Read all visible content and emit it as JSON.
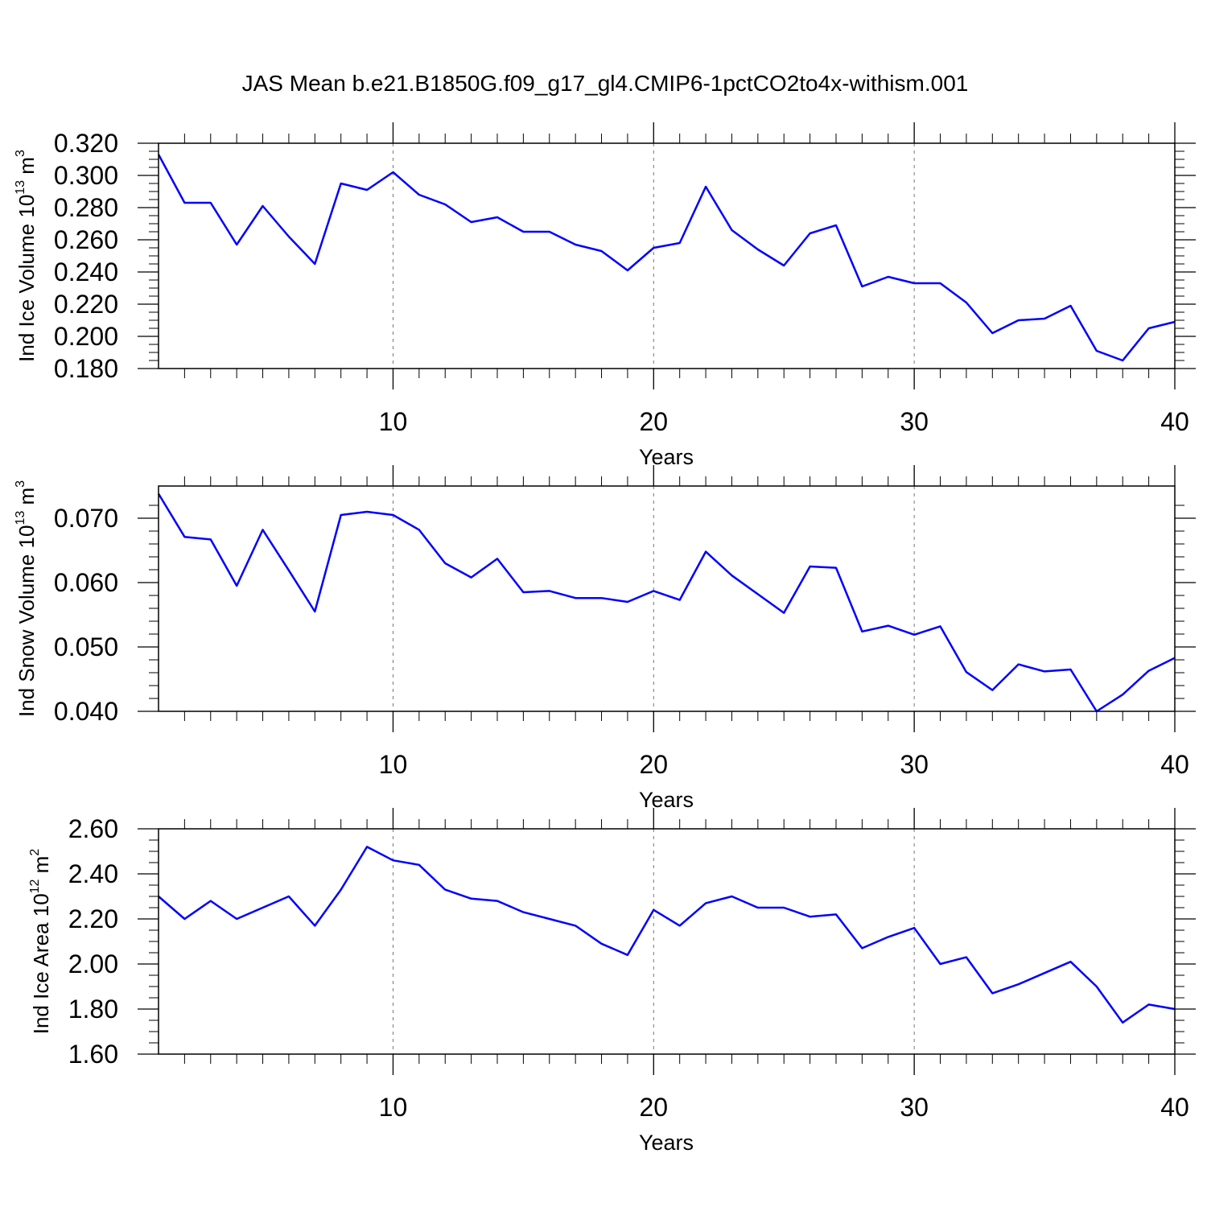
{
  "figure": {
    "title": "JAS Mean b.e21.B1850G.f09_g17_gl4.CMIP6-1pctCO2to4x-withism.001",
    "line_color": "#0000ff"
  },
  "chart_data": [
    {
      "type": "line",
      "name": "ind-ice-volume",
      "ylabel": {
        "text": "Ind Ice Volume 10",
        "sup": "13",
        "unit": " m",
        "unit_sup": "3"
      },
      "xlabel": "Years",
      "xlim": [
        1,
        40
      ],
      "ylim": [
        0.18,
        0.32
      ],
      "x_ticks": [
        10,
        20,
        30,
        40
      ],
      "y_ticks": [
        "0.180",
        "0.200",
        "0.220",
        "0.240",
        "0.260",
        "0.280",
        "0.300",
        "0.320"
      ],
      "y_tick_values": [
        0.18,
        0.2,
        0.22,
        0.24,
        0.26,
        0.28,
        0.3,
        0.32
      ],
      "y_minor_step": 0.005,
      "x": [
        1,
        2,
        3,
        4,
        5,
        6,
        7,
        8,
        9,
        10,
        11,
        12,
        13,
        14,
        15,
        16,
        17,
        18,
        19,
        20,
        21,
        22,
        23,
        24,
        25,
        26,
        27,
        28,
        29,
        30,
        31,
        32,
        33,
        34,
        35,
        36,
        37,
        38,
        39,
        40
      ],
      "values": [
        0.313,
        0.283,
        0.283,
        0.257,
        0.281,
        0.262,
        0.245,
        0.295,
        0.291,
        0.302,
        0.288,
        0.282,
        0.271,
        0.274,
        0.265,
        0.265,
        0.257,
        0.253,
        0.241,
        0.255,
        0.258,
        0.293,
        0.266,
        0.254,
        0.244,
        0.264,
        0.269,
        0.231,
        0.237,
        0.233,
        0.233,
        0.221,
        0.202,
        0.21,
        0.211,
        0.219,
        0.191,
        0.185,
        0.205,
        0.209
      ]
    },
    {
      "type": "line",
      "name": "ind-snow-volume",
      "ylabel": {
        "text": "Ind Snow Volume 10",
        "sup": "13",
        "unit": " m",
        "unit_sup": "3"
      },
      "xlabel": "Years",
      "xlim": [
        1,
        40
      ],
      "ylim": [
        0.04,
        0.075
      ],
      "x_ticks": [
        10,
        20,
        30,
        40
      ],
      "y_ticks": [
        "0.040",
        "0.050",
        "0.060",
        "0.070"
      ],
      "y_tick_values": [
        0.04,
        0.05,
        0.06,
        0.07
      ],
      "y_minor_step": 0.002,
      "x": [
        1,
        2,
        3,
        4,
        5,
        6,
        7,
        8,
        9,
        10,
        11,
        12,
        13,
        14,
        15,
        16,
        17,
        18,
        19,
        20,
        21,
        22,
        23,
        24,
        25,
        26,
        27,
        28,
        29,
        30,
        31,
        32,
        33,
        34,
        35,
        36,
        37,
        38,
        39,
        40
      ],
      "values": [
        0.0738,
        0.0671,
        0.0667,
        0.0595,
        0.0682,
        0.0619,
        0.0555,
        0.0705,
        0.071,
        0.0705,
        0.0682,
        0.063,
        0.0608,
        0.0637,
        0.0585,
        0.0587,
        0.0576,
        0.0576,
        0.057,
        0.0587,
        0.0573,
        0.0648,
        0.0611,
        0.0582,
        0.0553,
        0.0625,
        0.0623,
        0.0524,
        0.0533,
        0.0519,
        0.0532,
        0.0461,
        0.0433,
        0.0473,
        0.0462,
        0.0465,
        0.04,
        0.0426,
        0.0463,
        0.0483
      ]
    },
    {
      "type": "line",
      "name": "ind-ice-area",
      "ylabel": {
        "text": "Ind Ice Area 10",
        "sup": "12",
        "unit": " m",
        "unit_sup": "2"
      },
      "xlabel": "Years",
      "xlim": [
        1,
        40
      ],
      "ylim": [
        1.6,
        2.6
      ],
      "x_ticks": [
        10,
        20,
        30,
        40
      ],
      "y_ticks": [
        "1.60",
        "1.80",
        "2.00",
        "2.20",
        "2.40",
        "2.60"
      ],
      "y_tick_values": [
        1.6,
        1.8,
        2.0,
        2.2,
        2.4,
        2.6
      ],
      "y_minor_step": 0.05,
      "x": [
        1,
        2,
        3,
        4,
        5,
        6,
        7,
        8,
        9,
        10,
        11,
        12,
        13,
        14,
        15,
        16,
        17,
        18,
        19,
        20,
        21,
        22,
        23,
        24,
        25,
        26,
        27,
        28,
        29,
        30,
        31,
        32,
        33,
        34,
        35,
        36,
        37,
        38,
        39,
        40
      ],
      "values": [
        2.3,
        2.2,
        2.28,
        2.2,
        2.25,
        2.3,
        2.17,
        2.33,
        2.52,
        2.46,
        2.44,
        2.33,
        2.29,
        2.28,
        2.23,
        2.2,
        2.17,
        2.09,
        2.04,
        2.24,
        2.17,
        2.27,
        2.3,
        2.25,
        2.25,
        2.21,
        2.22,
        2.07,
        2.12,
        2.16,
        2.0,
        2.03,
        1.87,
        1.91,
        1.96,
        2.01,
        1.9,
        1.74,
        1.82,
        1.8
      ]
    }
  ]
}
